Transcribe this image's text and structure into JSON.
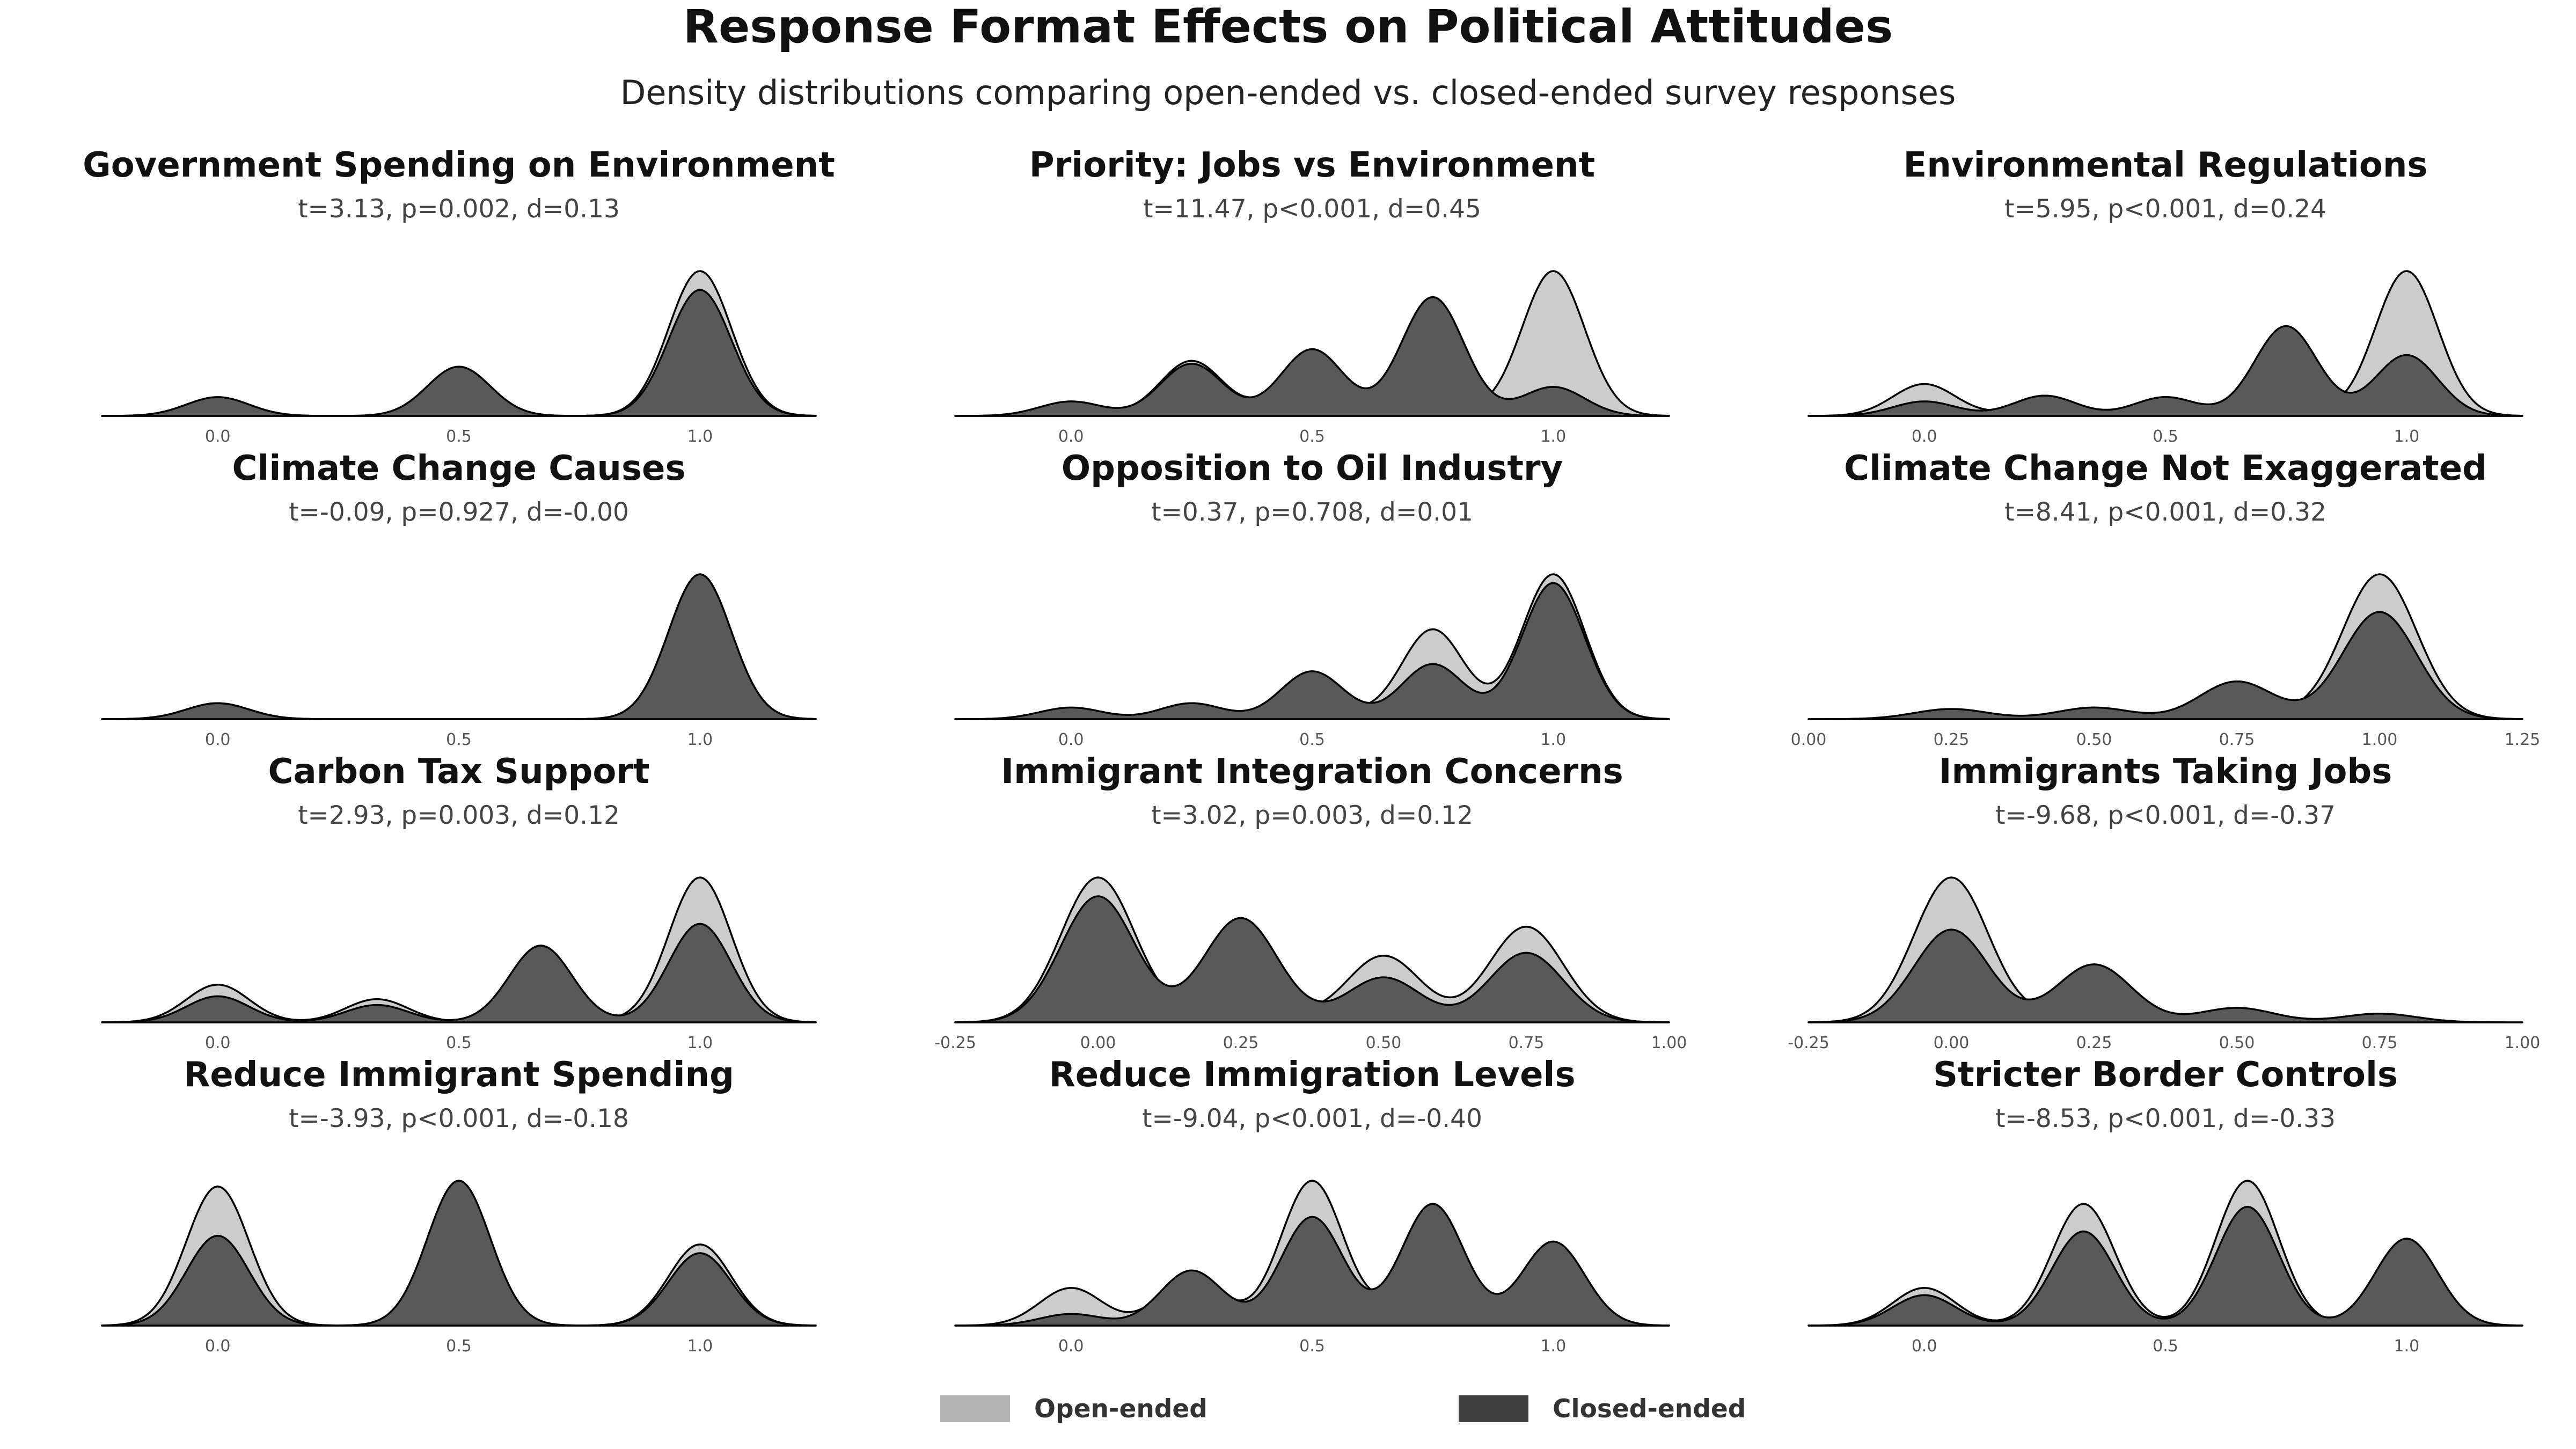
{
  "title": "Response Format Effects on Political Attitudes",
  "subtitle": "Density distributions comparing open-ended vs. closed-ended survey responses",
  "legend": [
    {
      "label": "Open-ended",
      "color": "#b3b3b3"
    },
    {
      "label": "Closed-ended",
      "color": "#404040"
    }
  ],
  "colors": {
    "open_fill": "#cccccc",
    "closed_fill": "#595959",
    "outline": "#000000",
    "tick_text": "#555555"
  },
  "chart_data": [
    {
      "type": "area",
      "title": "Government Spending on Environment",
      "stats": "t=3.13, p=0.002, d=0.13",
      "x_ticks": [
        "0.0",
        "0.5",
        "1.0"
      ],
      "x_tick_values": [
        0,
        0.5,
        1
      ],
      "xlim": [
        -0.24,
        1.24
      ],
      "series": [
        {
          "name": "Open-ended",
          "peaks": [
            [
              0,
              0.1
            ],
            [
              0.5,
              0.16
            ],
            [
              1,
              1.0
            ]
          ]
        },
        {
          "name": "Closed-ended",
          "peaks": [
            [
              0,
              0.13
            ],
            [
              0.5,
              0.34
            ],
            [
              1,
              0.87
            ]
          ]
        }
      ]
    },
    {
      "type": "area",
      "title": "Priority: Jobs vs Environment",
      "stats": "t=11.47, p<0.001, d=0.45",
      "x_ticks": [
        "0.0",
        "0.5",
        "1.0"
      ],
      "x_tick_values": [
        0,
        0.5,
        1
      ],
      "xlim": [
        -0.24,
        1.24
      ],
      "series": [
        {
          "name": "Open-ended",
          "peaks": [
            [
              0,
              0.06
            ],
            [
              0.25,
              0.38
            ],
            [
              0.5,
              0.44
            ],
            [
              0.75,
              0.1
            ],
            [
              1,
              1.0
            ]
          ]
        },
        {
          "name": "Closed-ended",
          "peaks": [
            [
              0,
              0.1
            ],
            [
              0.25,
              0.36
            ],
            [
              0.5,
              0.46
            ],
            [
              0.75,
              0.82
            ],
            [
              1,
              0.2
            ]
          ]
        }
      ]
    },
    {
      "type": "area",
      "title": "Environmental Regulations",
      "stats": "t=5.95, p<0.001, d=0.24",
      "x_ticks": [
        "0.0",
        "0.5",
        "1.0"
      ],
      "x_tick_values": [
        0,
        0.5,
        1
      ],
      "xlim": [
        -0.24,
        1.24
      ],
      "series": [
        {
          "name": "Open-ended",
          "peaks": [
            [
              0,
              0.22
            ],
            [
              0.25,
              0.07
            ],
            [
              0.5,
              0.06
            ],
            [
              0.75,
              0.1
            ],
            [
              1,
              1.0
            ]
          ]
        },
        {
          "name": "Closed-ended",
          "peaks": [
            [
              0,
              0.1
            ],
            [
              0.25,
              0.14
            ],
            [
              0.5,
              0.13
            ],
            [
              0.75,
              0.62
            ],
            [
              1,
              0.42
            ]
          ]
        }
      ]
    },
    {
      "type": "area",
      "title": "Climate Change Causes",
      "stats": "t=-0.09, p=0.927, d=-0.00",
      "x_ticks": [
        "0.0",
        "0.5",
        "1.0"
      ],
      "x_tick_values": [
        0,
        0.5,
        1
      ],
      "xlim": [
        -0.24,
        1.24
      ],
      "series": [
        {
          "name": "Open-ended",
          "peaks": [
            [
              0,
              0.11
            ],
            [
              1,
              1.0
            ]
          ]
        },
        {
          "name": "Closed-ended",
          "peaks": [
            [
              0,
              0.11
            ],
            [
              1,
              1.0
            ]
          ]
        }
      ]
    },
    {
      "type": "area",
      "title": "Opposition to Oil Industry",
      "stats": "t=0.37, p=0.708, d=0.01",
      "x_ticks": [
        "0.0",
        "0.5",
        "1.0"
      ],
      "x_tick_values": [
        0,
        0.5,
        1
      ],
      "xlim": [
        -0.24,
        1.24
      ],
      "series": [
        {
          "name": "Open-ended",
          "peaks": [
            [
              0,
              0.05
            ],
            [
              0.25,
              0.09
            ],
            [
              0.5,
              0.16
            ],
            [
              0.75,
              0.62
            ],
            [
              1,
              1.0
            ]
          ]
        },
        {
          "name": "Closed-ended",
          "peaks": [
            [
              0,
              0.08
            ],
            [
              0.25,
              0.11
            ],
            [
              0.5,
              0.33
            ],
            [
              0.75,
              0.38
            ],
            [
              1,
              0.94
            ]
          ]
        }
      ]
    },
    {
      "type": "area",
      "title": "Climate Change Not Exaggerated",
      "stats": "t=8.41, p<0.001, d=0.32",
      "x_ticks": [
        "0.00",
        "0.25",
        "0.50",
        "0.75",
        "1.00",
        "1.25"
      ],
      "x_tick_values": [
        0,
        0.25,
        0.5,
        0.75,
        1,
        1.25
      ],
      "xlim": [
        0,
        1.25
      ],
      "series": [
        {
          "name": "Open-ended",
          "peaks": [
            [
              0.25,
              0.06
            ],
            [
              0.5,
              0.05
            ],
            [
              0.75,
              0.1
            ],
            [
              1,
              1.0
            ]
          ]
        },
        {
          "name": "Closed-ended",
          "peaks": [
            [
              0.25,
              0.07
            ],
            [
              0.5,
              0.08
            ],
            [
              0.75,
              0.26
            ],
            [
              1,
              0.74
            ]
          ]
        }
      ]
    },
    {
      "type": "area",
      "title": "Carbon Tax Support",
      "stats": "t=2.93, p=0.003, d=0.12",
      "x_ticks": [
        "0.0",
        "0.5",
        "1.0"
      ],
      "x_tick_values": [
        0,
        0.5,
        1
      ],
      "xlim": [
        -0.24,
        1.24
      ],
      "series": [
        {
          "name": "Open-ended",
          "peaks": [
            [
              0,
              0.26
            ],
            [
              0.33,
              0.16
            ],
            [
              0.67,
              0.18
            ],
            [
              1,
              1.0
            ]
          ]
        },
        {
          "name": "Closed-ended",
          "peaks": [
            [
              0,
              0.18
            ],
            [
              0.33,
              0.12
            ],
            [
              0.67,
              0.53
            ],
            [
              1,
              0.68
            ]
          ]
        }
      ]
    },
    {
      "type": "area",
      "title": "Immigrant Integration Concerns",
      "stats": "t=3.02, p=0.003, d=0.12",
      "x_ticks": [
        "-0.25",
        "0.00",
        "0.25",
        "0.50",
        "0.75",
        "1.00"
      ],
      "x_tick_values": [
        -0.25,
        0,
        0.25,
        0.5,
        0.75,
        1
      ],
      "xlim": [
        -0.25,
        1.0
      ],
      "series": [
        {
          "name": "Open-ended",
          "peaks": [
            [
              0,
              1.0
            ],
            [
              0.25,
              0.26
            ],
            [
              0.5,
              0.46
            ],
            [
              0.75,
              0.66
            ]
          ]
        },
        {
          "name": "Closed-ended",
          "peaks": [
            [
              0,
              0.87
            ],
            [
              0.25,
              0.72
            ],
            [
              0.5,
              0.31
            ],
            [
              0.75,
              0.48
            ]
          ]
        }
      ]
    },
    {
      "type": "area",
      "title": "Immigrants Taking Jobs",
      "stats": "t=-9.68, p<0.001, d=-0.37",
      "x_ticks": [
        "-0.25",
        "0.00",
        "0.25",
        "0.50",
        "0.75",
        "1.00"
      ],
      "x_tick_values": [
        -0.25,
        0,
        0.25,
        0.5,
        0.75,
        1
      ],
      "xlim": [
        -0.25,
        1.0
      ],
      "series": [
        {
          "name": "Open-ended",
          "peaks": [
            [
              0,
              1.0
            ],
            [
              0.25,
              0.14
            ],
            [
              0.5,
              0.08
            ],
            [
              0.75,
              0.04
            ]
          ]
        },
        {
          "name": "Closed-ended",
          "peaks": [
            [
              0,
              0.64
            ],
            [
              0.25,
              0.4
            ],
            [
              0.5,
              0.1
            ],
            [
              0.75,
              0.06
            ]
          ]
        }
      ]
    },
    {
      "type": "area",
      "title": "Reduce Immigrant Spending",
      "stats": "t=-3.93, p<0.001, d=-0.18",
      "x_ticks": [
        "0.0",
        "0.5",
        "1.0"
      ],
      "x_tick_values": [
        0,
        0.5,
        1
      ],
      "xlim": [
        -0.24,
        1.24
      ],
      "series": [
        {
          "name": "Open-ended",
          "peaks": [
            [
              0,
              0.96
            ],
            [
              0.5,
              0.58
            ],
            [
              1,
              0.56
            ]
          ]
        },
        {
          "name": "Closed-ended",
          "peaks": [
            [
              0,
              0.62
            ],
            [
              0.5,
              1.0
            ],
            [
              1,
              0.5
            ]
          ]
        }
      ]
    },
    {
      "type": "area",
      "title": "Reduce Immigration Levels",
      "stats": "t=-9.04, p<0.001, d=-0.40",
      "x_ticks": [
        "0.0",
        "0.5",
        "1.0"
      ],
      "x_tick_values": [
        0,
        0.5,
        1
      ],
      "xlim": [
        -0.24,
        1.24
      ],
      "series": [
        {
          "name": "Open-ended",
          "peaks": [
            [
              0,
              0.26
            ],
            [
              0.25,
              0.34
            ],
            [
              0.5,
              1.0
            ],
            [
              0.75,
              0.53
            ],
            [
              1,
              0.33
            ]
          ]
        },
        {
          "name": "Closed-ended",
          "peaks": [
            [
              0,
              0.08
            ],
            [
              0.25,
              0.38
            ],
            [
              0.5,
              0.75
            ],
            [
              0.75,
              0.84
            ],
            [
              1,
              0.58
            ]
          ]
        }
      ]
    },
    {
      "type": "area",
      "title": "Stricter Border Controls",
      "stats": "t=-8.53, p<0.001, d=-0.33",
      "x_ticks": [
        "0.0",
        "0.5",
        "1.0"
      ],
      "x_tick_values": [
        0,
        0.5,
        1
      ],
      "xlim": [
        -0.24,
        1.24
      ],
      "series": [
        {
          "name": "Open-ended",
          "peaks": [
            [
              0,
              0.26
            ],
            [
              0.33,
              0.84
            ],
            [
              0.67,
              1.0
            ],
            [
              1,
              0.16
            ]
          ]
        },
        {
          "name": "Closed-ended",
          "peaks": [
            [
              0,
              0.21
            ],
            [
              0.33,
              0.65
            ],
            [
              0.67,
              0.82
            ],
            [
              1,
              0.6
            ]
          ]
        }
      ]
    }
  ]
}
